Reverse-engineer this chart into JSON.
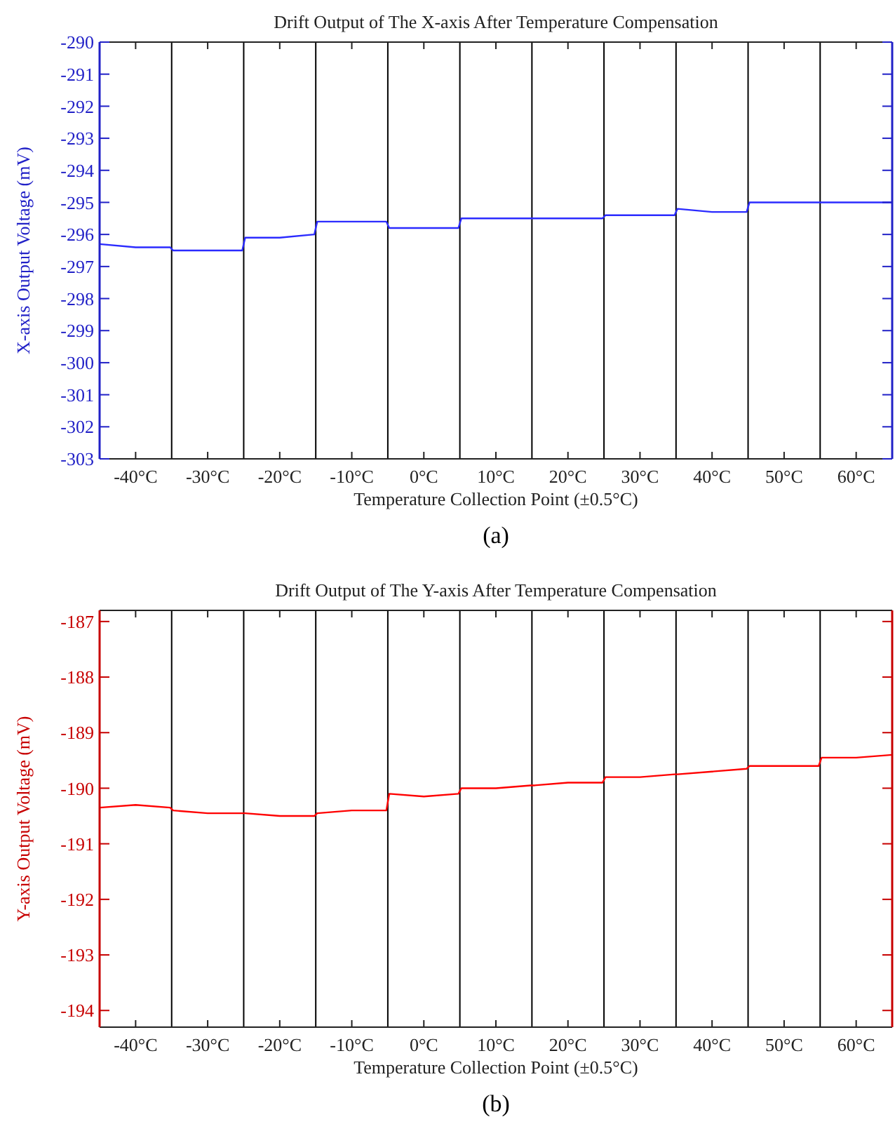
{
  "chart_data": [
    {
      "type": "line",
      "title": "Drift Output of The X-axis After Temperature Compensation",
      "xlabel": "Temperature Collection Point (±0.5°C)",
      "ylabel": "X-axis Output Voltage (mV)",
      "annotations": [
        "(a)"
      ],
      "xlim": [
        -45,
        65
      ],
      "xticks": [
        {
          "value": -40,
          "label": "-40°C"
        },
        {
          "value": -30,
          "label": "-30°C"
        },
        {
          "value": -20,
          "label": "-20°C"
        },
        {
          "value": -10,
          "label": "-10°C"
        },
        {
          "value": 0,
          "label": "0°C"
        },
        {
          "value": 10,
          "label": "10°C"
        },
        {
          "value": 20,
          "label": "20°C"
        },
        {
          "value": 30,
          "label": "30°C"
        },
        {
          "value": 40,
          "label": "40°C"
        },
        {
          "value": 50,
          "label": "50°C"
        },
        {
          "value": 60,
          "label": "60°C"
        }
      ],
      "ylim": [
        -303,
        -290
      ],
      "yticks": [
        -303,
        -302,
        -301,
        -300,
        -299,
        -298,
        -297,
        -296,
        -295,
        -294,
        -293,
        -292,
        -291,
        -290
      ],
      "ref_lines": [
        {
          "axis": "x",
          "value": -35,
          "color": "#000000"
        },
        {
          "axis": "x",
          "value": -25,
          "color": "#000000"
        },
        {
          "axis": "x",
          "value": -15,
          "color": "#000000"
        },
        {
          "axis": "x",
          "value": -5,
          "color": "#000000"
        },
        {
          "axis": "x",
          "value": 5,
          "color": "#000000"
        },
        {
          "axis": "x",
          "value": 15,
          "color": "#000000"
        },
        {
          "axis": "x",
          "value": 25,
          "color": "#000000"
        },
        {
          "axis": "x",
          "value": 35,
          "color": "#000000"
        },
        {
          "axis": "x",
          "value": 45,
          "color": "#000000"
        },
        {
          "axis": "x",
          "value": 55,
          "color": "#000000"
        }
      ],
      "series": [
        {
          "color": "#2b2bff",
          "x": [
            -45,
            -40,
            -35.2,
            -34.8,
            -30,
            -25.2,
            -24.8,
            -20,
            -15.2,
            -14.8,
            -10,
            -5.2,
            -4.8,
            0,
            4.8,
            5.2,
            10,
            14.8,
            15.2,
            20,
            24.8,
            25.2,
            30,
            34.8,
            35.2,
            40,
            44.8,
            45.2,
            50,
            54.8,
            55.2,
            60,
            65
          ],
          "values": [
            -296.3,
            -296.4,
            -296.4,
            -296.5,
            -296.5,
            -296.5,
            -296.1,
            -296.1,
            -296.0,
            -295.6,
            -295.6,
            -295.6,
            -295.8,
            -295.8,
            -295.8,
            -295.5,
            -295.5,
            -295.5,
            -295.5,
            -295.5,
            -295.5,
            -295.4,
            -295.4,
            -295.4,
            -295.2,
            -295.3,
            -295.3,
            -295.0,
            -295.0,
            -295.0,
            -295.0,
            -295.0,
            -295.0
          ]
        }
      ]
    },
    {
      "type": "line",
      "title": "Drift Output of The Y-axis After Temperature Compensation",
      "xlabel": "Temperature Collection Point (±0.5°C)",
      "ylabel": "Y-axis Output Voltage (mV)",
      "annotations": [
        "(b)"
      ],
      "xlim": [
        -45,
        65
      ],
      "xticks": [
        {
          "value": -40,
          "label": "-40°C"
        },
        {
          "value": -30,
          "label": "-30°C"
        },
        {
          "value": -20,
          "label": "-20°C"
        },
        {
          "value": -10,
          "label": "-10°C"
        },
        {
          "value": 0,
          "label": "0°C"
        },
        {
          "value": 10,
          "label": "10°C"
        },
        {
          "value": 20,
          "label": "20°C"
        },
        {
          "value": 30,
          "label": "30°C"
        },
        {
          "value": 40,
          "label": "40°C"
        },
        {
          "value": 50,
          "label": "50°C"
        },
        {
          "value": 60,
          "label": "60°C"
        }
      ],
      "ylim": [
        -194.3,
        -186.8
      ],
      "yticks": [
        -194,
        -193,
        -192,
        -191,
        -190,
        -189,
        -188,
        -187
      ],
      "ref_lines": [
        {
          "axis": "x",
          "value": -35,
          "color": "#000000"
        },
        {
          "axis": "x",
          "value": -25,
          "color": "#000000"
        },
        {
          "axis": "x",
          "value": -15,
          "color": "#000000"
        },
        {
          "axis": "x",
          "value": -5,
          "color": "#000000"
        },
        {
          "axis": "x",
          "value": 5,
          "color": "#000000"
        },
        {
          "axis": "x",
          "value": 15,
          "color": "#000000"
        },
        {
          "axis": "x",
          "value": 25,
          "color": "#000000"
        },
        {
          "axis": "x",
          "value": 35,
          "color": "#000000"
        },
        {
          "axis": "x",
          "value": 45,
          "color": "#000000"
        },
        {
          "axis": "x",
          "value": 55,
          "color": "#000000"
        }
      ],
      "series": [
        {
          "color": "#ff0000",
          "x": [
            -45,
            -40,
            -35.2,
            -34.8,
            -30,
            -25.2,
            -24.8,
            -20,
            -15.2,
            -14.8,
            -10,
            -5.2,
            -4.8,
            0,
            4.8,
            5.2,
            10,
            14.8,
            15.2,
            20,
            24.8,
            25.2,
            30,
            34.8,
            35.2,
            40,
            44.8,
            45.2,
            50,
            54.8,
            55.2,
            60,
            65
          ],
          "values": [
            -190.35,
            -190.3,
            -190.35,
            -190.4,
            -190.45,
            -190.45,
            -190.45,
            -190.5,
            -190.5,
            -190.45,
            -190.4,
            -190.4,
            -190.1,
            -190.15,
            -190.1,
            -190.0,
            -190.0,
            -189.95,
            -189.95,
            -189.9,
            -189.9,
            -189.8,
            -189.8,
            -189.75,
            -189.75,
            -189.7,
            -189.65,
            -189.6,
            -189.6,
            -189.6,
            -189.45,
            -189.45,
            -189.4
          ]
        }
      ]
    }
  ]
}
